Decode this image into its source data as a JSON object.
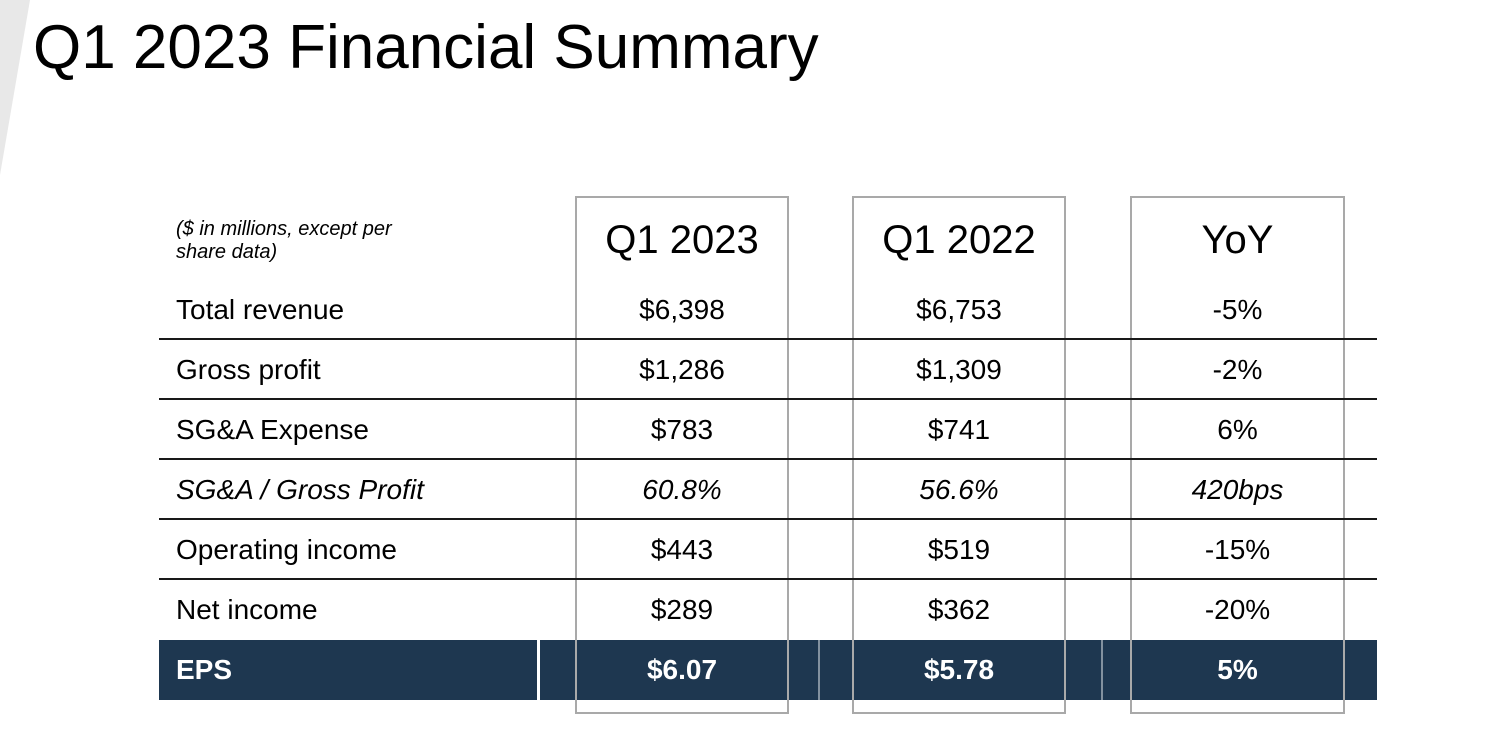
{
  "slide": {
    "title": "Q1 2023 Financial Summary"
  },
  "table": {
    "note": "($ in millions, except per share data)",
    "columns": [
      "Q1 2023",
      "Q1 2022",
      "YoY"
    ],
    "rows": [
      {
        "label": "Total revenue",
        "q1_2023": "$6,398",
        "q1_2022": "$6,753",
        "yoy": "-5%"
      },
      {
        "label": "Gross profit",
        "q1_2023": "$1,286",
        "q1_2022": "$1,309",
        "yoy": "-2%"
      },
      {
        "label": "SG&A Expense",
        "q1_2023": "$783",
        "q1_2022": "$741",
        "yoy": "6%"
      },
      {
        "label": "SG&A / Gross Profit",
        "q1_2023": "60.8%",
        "q1_2022": "56.6%",
        "yoy": "420bps"
      },
      {
        "label": "Operating income",
        "q1_2023": "$443",
        "q1_2022": "$519",
        "yoy": "-15%"
      },
      {
        "label": "Net income",
        "q1_2023": "$289",
        "q1_2022": "$362",
        "yoy": "-20%"
      },
      {
        "label": "EPS",
        "q1_2023": "$6.07",
        "q1_2022": "$5.78",
        "yoy": "5%"
      }
    ]
  },
  "colors": {
    "highlight_navy": "#1e3750",
    "box_border": "#a9a9a9",
    "row_line": "#191919",
    "corner_gray": "#e8e8e8"
  }
}
